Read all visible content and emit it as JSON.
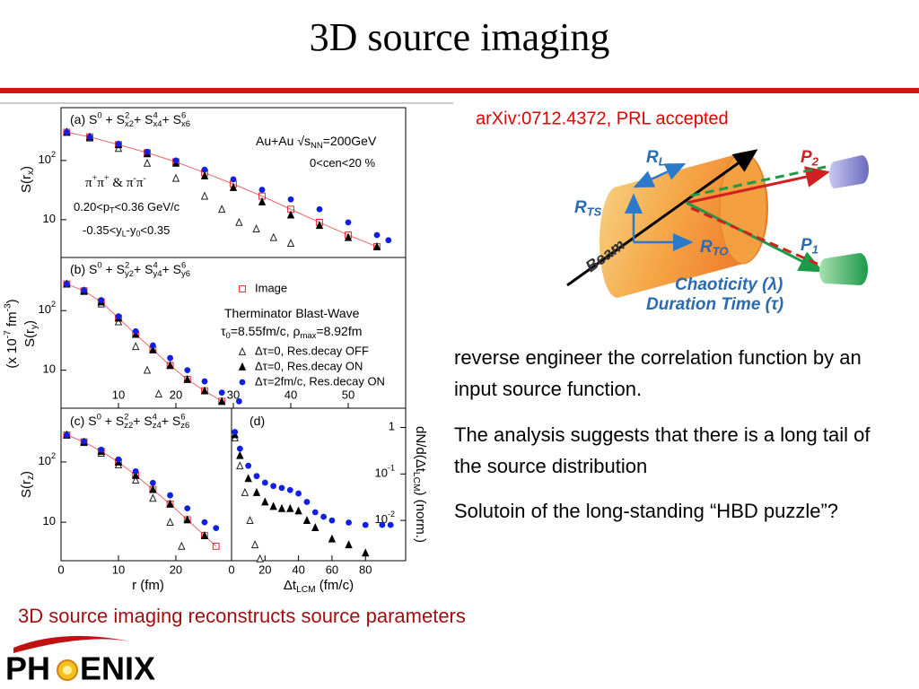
{
  "title": "3D source imaging",
  "reference": "arXiv:0712.4372, PRL accepted",
  "bullets": [
    "reverse engineer the correlation function by an input source function.",
    "The analysis suggests that there is a long tail of the source distribution",
    "Solutoin of the long-standing “HBD puzzle”?"
  ],
  "caption": "3D source imaging reconstructs source parameters",
  "logo": {
    "left": "PH",
    "right": "ENIX"
  },
  "diagram": {
    "labels": [
      [
        {
          "text": "R"
        },
        {
          "text": "L",
          "pos": "sub"
        }
      ],
      [
        {
          "text": "R"
        },
        {
          "text": "TS",
          "pos": "sub"
        }
      ],
      [
        {
          "text": "R"
        },
        {
          "text": "TO",
          "pos": "sub"
        }
      ],
      [
        {
          "text": "P"
        },
        {
          "text": "2",
          "pos": "sub"
        }
      ],
      [
        {
          "text": "P"
        },
        {
          "text": "1",
          "pos": "sub"
        }
      ],
      [
        {
          "text": "Beam"
        }
      ],
      [
        {
          "text": "Chaoticity (λ)"
        }
      ],
      [
        {
          "text": "Duration Time (τ)"
        }
      ]
    ]
  },
  "figure": {
    "units_label": [
      {
        "text": "(x 10"
      },
      {
        "text": "-7",
        "pos": "sup"
      },
      {
        "text": " fm"
      },
      {
        "text": "-3",
        "pos": "sup"
      },
      {
        "text": ")"
      }
    ],
    "xlabels": [
      [
        {
          "text": "r (fm)"
        }
      ],
      [
        {
          "text": "Δt"
        },
        {
          "text": "LCM",
          "pos": "sub"
        },
        {
          "text": " (fm/c)"
        }
      ]
    ],
    "panels": [
      {
        "yscale": "log",
        "xlim": [
          0,
          60
        ],
        "ylim": [
          2.3,
          780
        ],
        "yticks": [
          10,
          {
            "value": 100,
            "label": "10",
            "exponent": "2"
          }
        ],
        "ylabel": [
          {
            "text": "S(r"
          },
          {
            "text": "x",
            "pos": "sub"
          },
          {
            "text": ")"
          }
        ],
        "annotations": [
          [
            {
              "text": "(a) S"
            },
            {
              "text": "0",
              "pos": "sup"
            },
            {
              "text": " + S"
            },
            {
              "text": "2",
              "pos": "sup"
            },
            {
              "text": "x2",
              "pos": "sub"
            },
            {
              "text": "+ S"
            },
            {
              "text": "4",
              "pos": "sup"
            },
            {
              "text": "x4",
              "pos": "sub"
            },
            {
              "text": "+ S"
            },
            {
              "text": "6",
              "pos": "sup"
            },
            {
              "text": "x6",
              "pos": "sub"
            }
          ],
          [
            {
              "text": "Au+Au √s"
            },
            {
              "text": "NN",
              "pos": "sub"
            },
            {
              "text": "=200GeV"
            }
          ],
          [
            {
              "text": "0<cen<20 %"
            }
          ],
          [
            {
              "text": "π"
            },
            {
              "text": "+",
              "pos": "sup"
            },
            {
              "text": "π"
            },
            {
              "text": "+",
              "pos": "sup"
            },
            {
              "text": " & π"
            },
            {
              "text": "-",
              "pos": "sup"
            },
            {
              "text": "π"
            },
            {
              "text": "-",
              "pos": "sup"
            }
          ],
          [
            {
              "text": "0.20<p"
            },
            {
              "text": "T",
              "pos": "sub"
            },
            {
              "text": "<0.36 GeV/c"
            }
          ],
          [
            {
              "text": "-0.35<y"
            },
            {
              "text": "L",
              "pos": "sub"
            },
            {
              "text": "-y"
            },
            {
              "text": "0",
              "pos": "sub"
            },
            {
              "text": "<0.35"
            }
          ]
        ],
        "series": [
          {
            "marker": "square-open",
            "color": "#e8262a",
            "x": [
              1,
              5,
              10,
              15,
              20,
              25,
              30,
              35,
              40,
              45,
              50,
              55
            ],
            "y": [
              300,
              250,
              185,
              135,
              95,
              62,
              40,
              25,
              15,
              9,
              5.5,
              3.5
            ]
          },
          {
            "marker": "triangle-open",
            "color": "#222222",
            "x": [
              1,
              5,
              10,
              15,
              20,
              25,
              28,
              31,
              34,
              37,
              40
            ],
            "y": [
              300,
              240,
              160,
              90,
              50,
              25,
              15,
              9,
              7,
              5,
              4
            ]
          },
          {
            "marker": "triangle-filled",
            "color": "#000000",
            "x": [
              1,
              5,
              10,
              15,
              20,
              25,
              30,
              35,
              40,
              45,
              50,
              55
            ],
            "y": [
              300,
              250,
              185,
              130,
              90,
              55,
              35,
              20,
              12,
              8,
              5,
              3.5
            ]
          },
          {
            "marker": "circle-filled",
            "color": "#1020e0",
            "x": [
              1,
              5,
              10,
              15,
              20,
              25,
              30,
              35,
              40,
              45,
              50,
              55,
              57
            ],
            "y": [
              300,
              250,
              190,
              140,
              100,
              70,
              48,
              32,
              22,
              15,
              9,
              5.5,
              4.5
            ]
          }
        ]
      },
      {
        "yscale": "log",
        "xlim": [
          0,
          60
        ],
        "ylim": [
          2.3,
          780
        ],
        "xticks": [
          10,
          20,
          30,
          40,
          50
        ],
        "yticks": [
          10,
          {
            "value": 100,
            "label": "10",
            "exponent": "2"
          }
        ],
        "ylabel": [
          {
            "text": "S(r"
          },
          {
            "text": "y",
            "pos": "sub"
          },
          {
            "text": ")"
          }
        ],
        "annotations": [
          [
            {
              "text": "(b) S"
            },
            {
              "text": "0",
              "pos": "sup"
            },
            {
              "text": " + S"
            },
            {
              "text": "2",
              "pos": "sup"
            },
            {
              "text": "y2",
              "pos": "sub"
            },
            {
              "text": "+ S"
            },
            {
              "text": "4",
              "pos": "sup"
            },
            {
              "text": "y4",
              "pos": "sub"
            },
            {
              "text": "+ S"
            },
            {
              "text": "6",
              "pos": "sup"
            },
            {
              "text": "y6",
              "pos": "sub"
            }
          ],
          [
            {
              "text": "Therminator Blast-Wave"
            }
          ],
          [
            {
              "text": "τ"
            },
            {
              "text": "0",
              "pos": "sub"
            },
            {
              "text": "=8.55fm/c, ρ"
            },
            {
              "text": "max",
              "pos": "sub"
            },
            {
              "text": "=8.92fm"
            }
          ]
        ],
        "legend": [
          {
            "name": "Image",
            "marker": "square-open",
            "color": "#e8262a"
          },
          {
            "name": "Δτ=0, Res.decay OFF",
            "marker": "triangle-open",
            "color": "#222222"
          },
          {
            "name": "Δτ=0, Res.decay ON",
            "marker": "triangle-filled",
            "color": "#000000"
          },
          {
            "name": "Δτ=2fm/c, Res.decay ON",
            "marker": "circle-filled",
            "color": "#1020e0"
          }
        ],
        "series": [
          {
            "marker": "square-open",
            "color": "#e8262a",
            "x": [
              1,
              4,
              7,
              10,
              13,
              16,
              19,
              22,
              25,
              28
            ],
            "y": [
              280,
              215,
              140,
              75,
              40,
              22,
              12,
              7,
              4.5,
              3
            ]
          },
          {
            "marker": "triangle-open",
            "color": "#222222",
            "x": [
              1,
              4,
              7,
              10,
              13,
              15,
              17
            ],
            "y": [
              280,
              210,
              130,
              65,
              25,
              10,
              4
            ]
          },
          {
            "marker": "triangle-filled",
            "color": "#000000",
            "x": [
              1,
              4,
              7,
              10,
              13,
              16,
              19,
              22,
              25,
              28
            ],
            "y": [
              280,
              215,
              140,
              75,
              40,
              22,
              12,
              7,
              4.5,
              3
            ]
          },
          {
            "marker": "circle-filled",
            "color": "#1020e0",
            "x": [
              1,
              4,
              7,
              10,
              13,
              16,
              19,
              22,
              25,
              28,
              31
            ],
            "y": [
              280,
              220,
              150,
              80,
              45,
              26,
              16,
              10,
              6.5,
              4.2,
              3
            ]
          }
        ]
      },
      {
        "yscale": "log",
        "xlim": [
          0,
          29.7
        ],
        "ylim": [
          2.3,
          780
        ],
        "xticks": [
          0,
          10,
          20
        ],
        "yticks": [
          10,
          {
            "value": 100,
            "label": "10",
            "exponent": "2"
          }
        ],
        "ylabel": [
          {
            "text": "S(r"
          },
          {
            "text": "z",
            "pos": "sub"
          },
          {
            "text": ")"
          }
        ],
        "annotations": [
          [
            {
              "text": "(c) S"
            },
            {
              "text": "0",
              "pos": "sup"
            },
            {
              "text": " + S"
            },
            {
              "text": "2",
              "pos": "sup"
            },
            {
              "text": "z2",
              "pos": "sub"
            },
            {
              "text": "+ S"
            },
            {
              "text": "4",
              "pos": "sup"
            },
            {
              "text": "z4",
              "pos": "sub"
            },
            {
              "text": "+ S"
            },
            {
              "text": "6",
              "pos": "sup"
            },
            {
              "text": "z6",
              "pos": "sub"
            }
          ]
        ],
        "series": [
          {
            "marker": "square-open",
            "color": "#e8262a",
            "x": [
              1,
              4,
              7,
              10,
              13,
              16,
              19,
              22,
              25,
              27
            ],
            "y": [
              280,
              215,
              150,
              100,
              60,
              35,
              20,
              11,
              6,
              4
            ]
          },
          {
            "marker": "triangle-open",
            "color": "#222222",
            "x": [
              1,
              4,
              7,
              10,
              13,
              16,
              19,
              21
            ],
            "y": [
              280,
              210,
              140,
              90,
              50,
              25,
              10,
              4
            ]
          },
          {
            "marker": "triangle-filled",
            "color": "#000000",
            "x": [
              1,
              4,
              7,
              10,
              13,
              16,
              19,
              22,
              25
            ],
            "y": [
              280,
              215,
              150,
              100,
              60,
              35,
              20,
              11,
              6
            ]
          },
          {
            "marker": "circle-filled",
            "color": "#1020e0",
            "x": [
              1,
              4,
              7,
              10,
              13,
              16,
              19,
              22,
              25,
              27
            ],
            "y": [
              280,
              220,
              160,
              110,
              70,
              45,
              28,
              17,
              10,
              8
            ]
          }
        ]
      },
      {
        "yscale": "log",
        "xlim": [
          0,
          104
        ],
        "ylim": [
          0.00136,
          2.6
        ],
        "xticks": [
          0,
          20,
          40,
          60,
          80
        ],
        "yticks": [
          1,
          {
            "value": 0.1,
            "label": "10",
            "exponent": "-1"
          },
          {
            "value": 0.01,
            "label": "10",
            "exponent": "-2"
          }
        ],
        "ylabel": [
          {
            "text": "dN/d(Δt"
          },
          {
            "text": "LCM",
            "pos": "sub"
          },
          {
            "text": ") (norm.)"
          }
        ],
        "annotations": [
          [
            {
              "text": "(d)"
            }
          ]
        ],
        "series": [
          {
            "marker": "triangle-open",
            "color": "#222222",
            "x": [
              2,
              5,
              8,
              11,
              14,
              17
            ],
            "y": [
              0.6,
              0.15,
              0.04,
              0.01,
              0.003,
              0.0015
            ]
          },
          {
            "marker": "triangle-filled",
            "color": "#000000",
            "x": [
              2,
              5,
              10,
              15,
              20,
              25,
              30,
              35,
              40,
              45,
              50,
              60,
              70,
              80
            ],
            "y": [
              0.7,
              0.25,
              0.08,
              0.04,
              0.025,
              0.02,
              0.018,
              0.018,
              0.016,
              0.01,
              0.007,
              0.004,
              0.003,
              0.002
            ]
          },
          {
            "marker": "circle-filled",
            "color": "#1020e0",
            "x": [
              2,
              5,
              10,
              15,
              20,
              25,
              30,
              35,
              40,
              45,
              50,
              55,
              60,
              70,
              80,
              90,
              95
            ],
            "y": [
              0.8,
              0.35,
              0.15,
              0.09,
              0.065,
              0.055,
              0.05,
              0.045,
              0.038,
              0.025,
              0.015,
              0.012,
              0.01,
              0.009,
              0.008,
              0.008,
              0.008
            ]
          }
        ]
      }
    ]
  }
}
